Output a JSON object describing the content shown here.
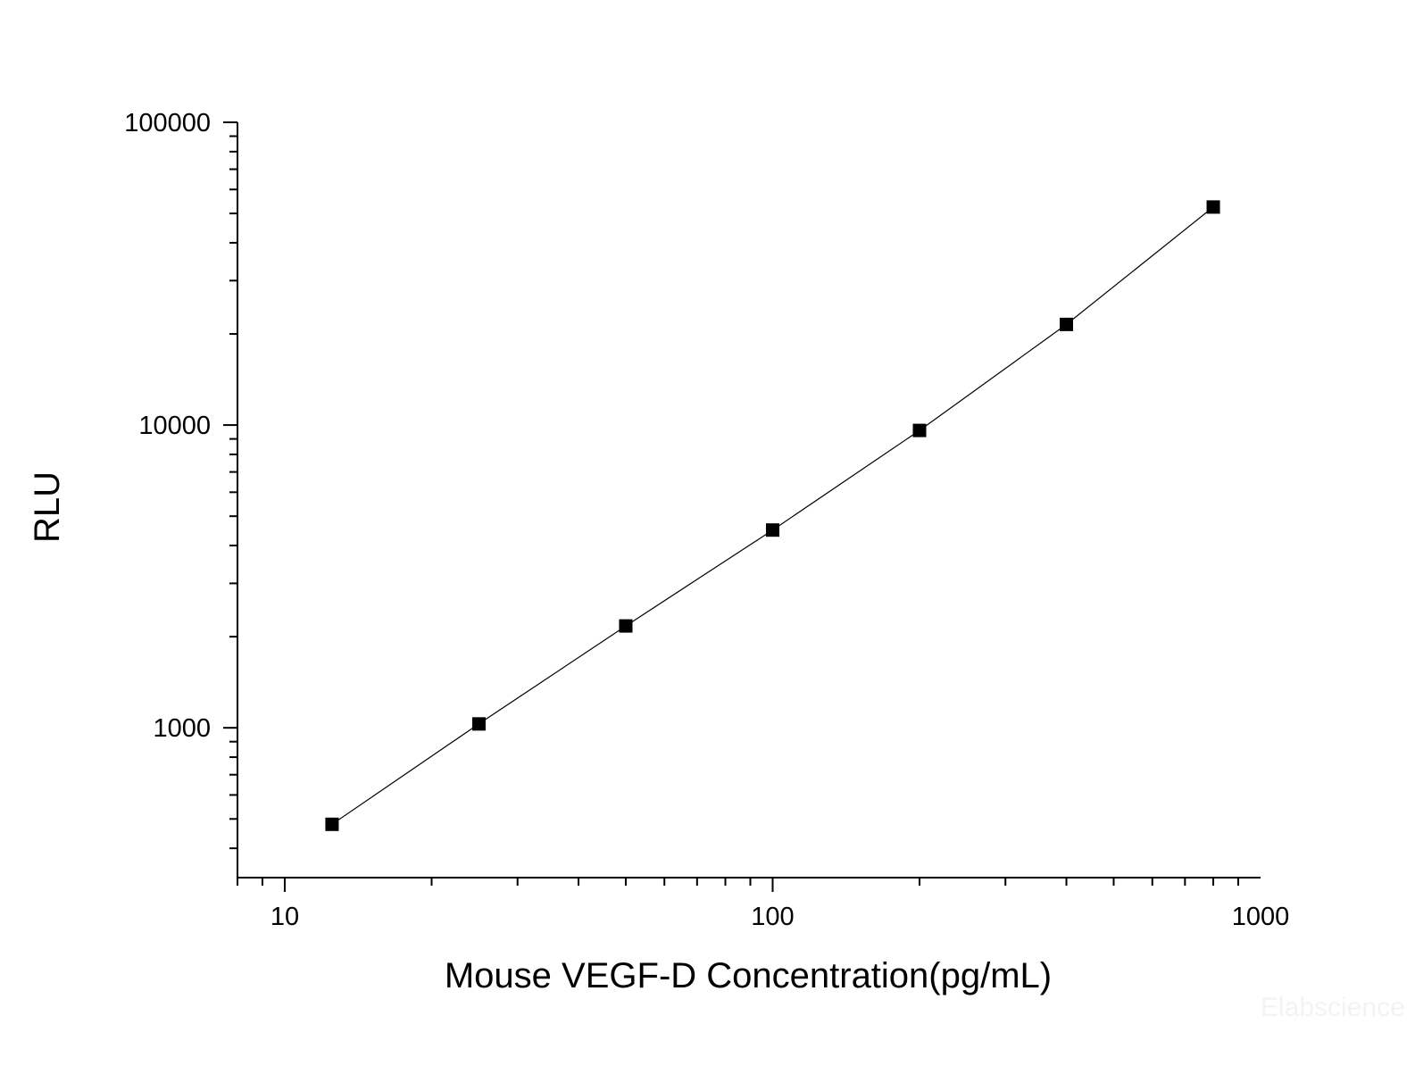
{
  "chart_data": {
    "type": "scatter",
    "title": "",
    "xlabel": "Mouse VEGF-D Concentration(pg/mL)",
    "ylabel": "RLU",
    "xscale": "log",
    "yscale": "log",
    "xlim": [
      8,
      1000
    ],
    "ylim": [
      320,
      100000
    ],
    "grid": false,
    "legend": "none",
    "connect_points": true,
    "x_ticks": [
      "10",
      "100",
      "1000"
    ],
    "y_ticks": [
      "1000",
      "10000",
      "100000"
    ],
    "series": [
      {
        "x": [
          12.5,
          25,
          50,
          100,
          200,
          400,
          800
        ],
        "y": [
          480,
          1030,
          2170,
          4500,
          9600,
          21500,
          52500
        ],
        "color": "#000000",
        "marker": "square"
      }
    ],
    "watermark": "Elabscience"
  }
}
